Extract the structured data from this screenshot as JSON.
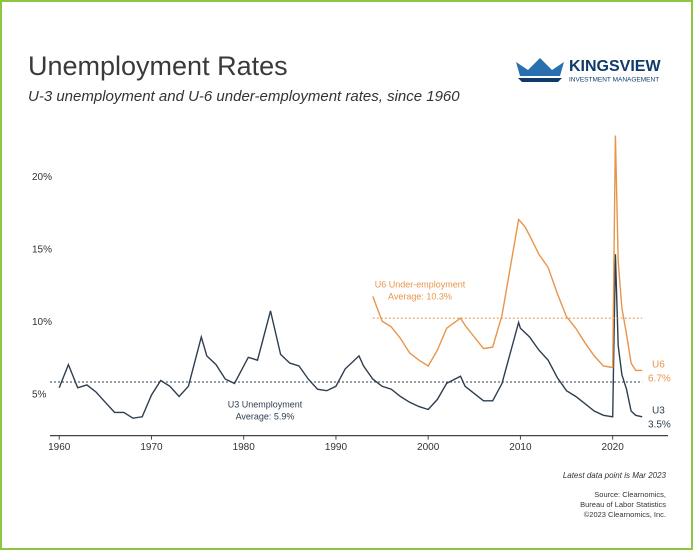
{
  "chart_data": {
    "type": "line",
    "title": "Unemployment Rates",
    "subtitle": "U-3 unemployment and U-6 under-employment rates, since 1960",
    "xlim": [
      1959,
      2026
    ],
    "xticks": [
      1960,
      1970,
      1980,
      1990,
      2000,
      2010,
      2020
    ],
    "ylim": [
      2.2,
      23.5
    ],
    "yticks": [
      {
        "value": 5,
        "label": "5%"
      },
      {
        "value": 10,
        "label": "10%"
      },
      {
        "value": 15,
        "label": "15%"
      },
      {
        "value": 20,
        "label": "20%"
      }
    ],
    "series": [
      {
        "name": "U3",
        "color": "#2d3e50",
        "end_label": "3.5%",
        "average": 5.9,
        "annotation": [
          "U3 Unemployment",
          "Average: 5.9%"
        ],
        "x": [
          1960,
          1961,
          1962,
          1963,
          1964,
          1965,
          1966,
          1967,
          1968,
          1969,
          1970,
          1971,
          1972,
          1973,
          1974,
          1975.4,
          1976,
          1977,
          1978,
          1979,
          1980.5,
          1981.5,
          1982.9,
          1984,
          1985,
          1986,
          1987,
          1988,
          1989,
          1990,
          1991,
          1992.5,
          1993,
          1994,
          1995,
          1996,
          1997,
          1998,
          1999,
          2000,
          2001,
          2002,
          2003.5,
          2004,
          2005,
          2006,
          2007,
          2008,
          2009.8,
          2010,
          2011,
          2012,
          2013,
          2014,
          2015,
          2016,
          2017,
          2018,
          2019,
          2020,
          2020.3,
          2020.6,
          2021,
          2021.5,
          2022,
          2022.5,
          2023.2
        ],
        "values": [
          5.5,
          7.1,
          5.5,
          5.7,
          5.2,
          4.5,
          3.8,
          3.8,
          3.4,
          3.5,
          5.0,
          6.0,
          5.6,
          4.9,
          5.6,
          9.0,
          7.7,
          7.1,
          6.1,
          5.8,
          7.6,
          7.4,
          10.8,
          7.8,
          7.2,
          7.0,
          6.1,
          5.4,
          5.3,
          5.6,
          6.8,
          7.7,
          7.0,
          6.1,
          5.6,
          5.4,
          4.9,
          4.5,
          4.2,
          4.0,
          4.7,
          5.8,
          6.3,
          5.6,
          5.1,
          4.6,
          4.6,
          5.8,
          10.0,
          9.6,
          9.0,
          8.1,
          7.4,
          6.2,
          5.3,
          4.9,
          4.4,
          3.9,
          3.6,
          3.5,
          14.7,
          8.4,
          6.4,
          5.4,
          3.9,
          3.6,
          3.5
        ]
      },
      {
        "name": "U6",
        "color": "#e8954a",
        "end_label": "6.7%",
        "average": 10.3,
        "annotation": [
          "U6 Under-employment",
          "Average: 10.3%"
        ],
        "x": [
          1994,
          1995,
          1996,
          1997,
          1998,
          1999,
          2000,
          2001,
          2002,
          2003.5,
          2004,
          2005,
          2006,
          2007,
          2008,
          2009.8,
          2010.5,
          2011,
          2012,
          2013,
          2014,
          2015,
          2016,
          2017,
          2018,
          2019,
          2020,
          2020.3,
          2020.6,
          2021,
          2021.5,
          2022,
          2022.5,
          2023.2
        ],
        "values": [
          11.8,
          10.1,
          9.7,
          8.9,
          7.9,
          7.4,
          7.0,
          8.1,
          9.6,
          10.3,
          9.8,
          9.0,
          8.2,
          8.3,
          10.5,
          17.1,
          16.6,
          16.0,
          14.7,
          13.8,
          12.0,
          10.4,
          9.6,
          8.6,
          7.7,
          7.0,
          6.9,
          22.9,
          14.2,
          11.0,
          9.2,
          7.2,
          6.7,
          6.7
        ]
      }
    ]
  },
  "logo": {
    "name": "KINGSVIEW",
    "tagline": "INVESTMENT MANAGEMENT"
  },
  "notes": {
    "latest": "Latest data point is Mar 2023",
    "source": [
      "Source: Clearnomics,",
      "Bureau of Labor Statistics",
      "©2023 Clearnomics, Inc."
    ]
  }
}
